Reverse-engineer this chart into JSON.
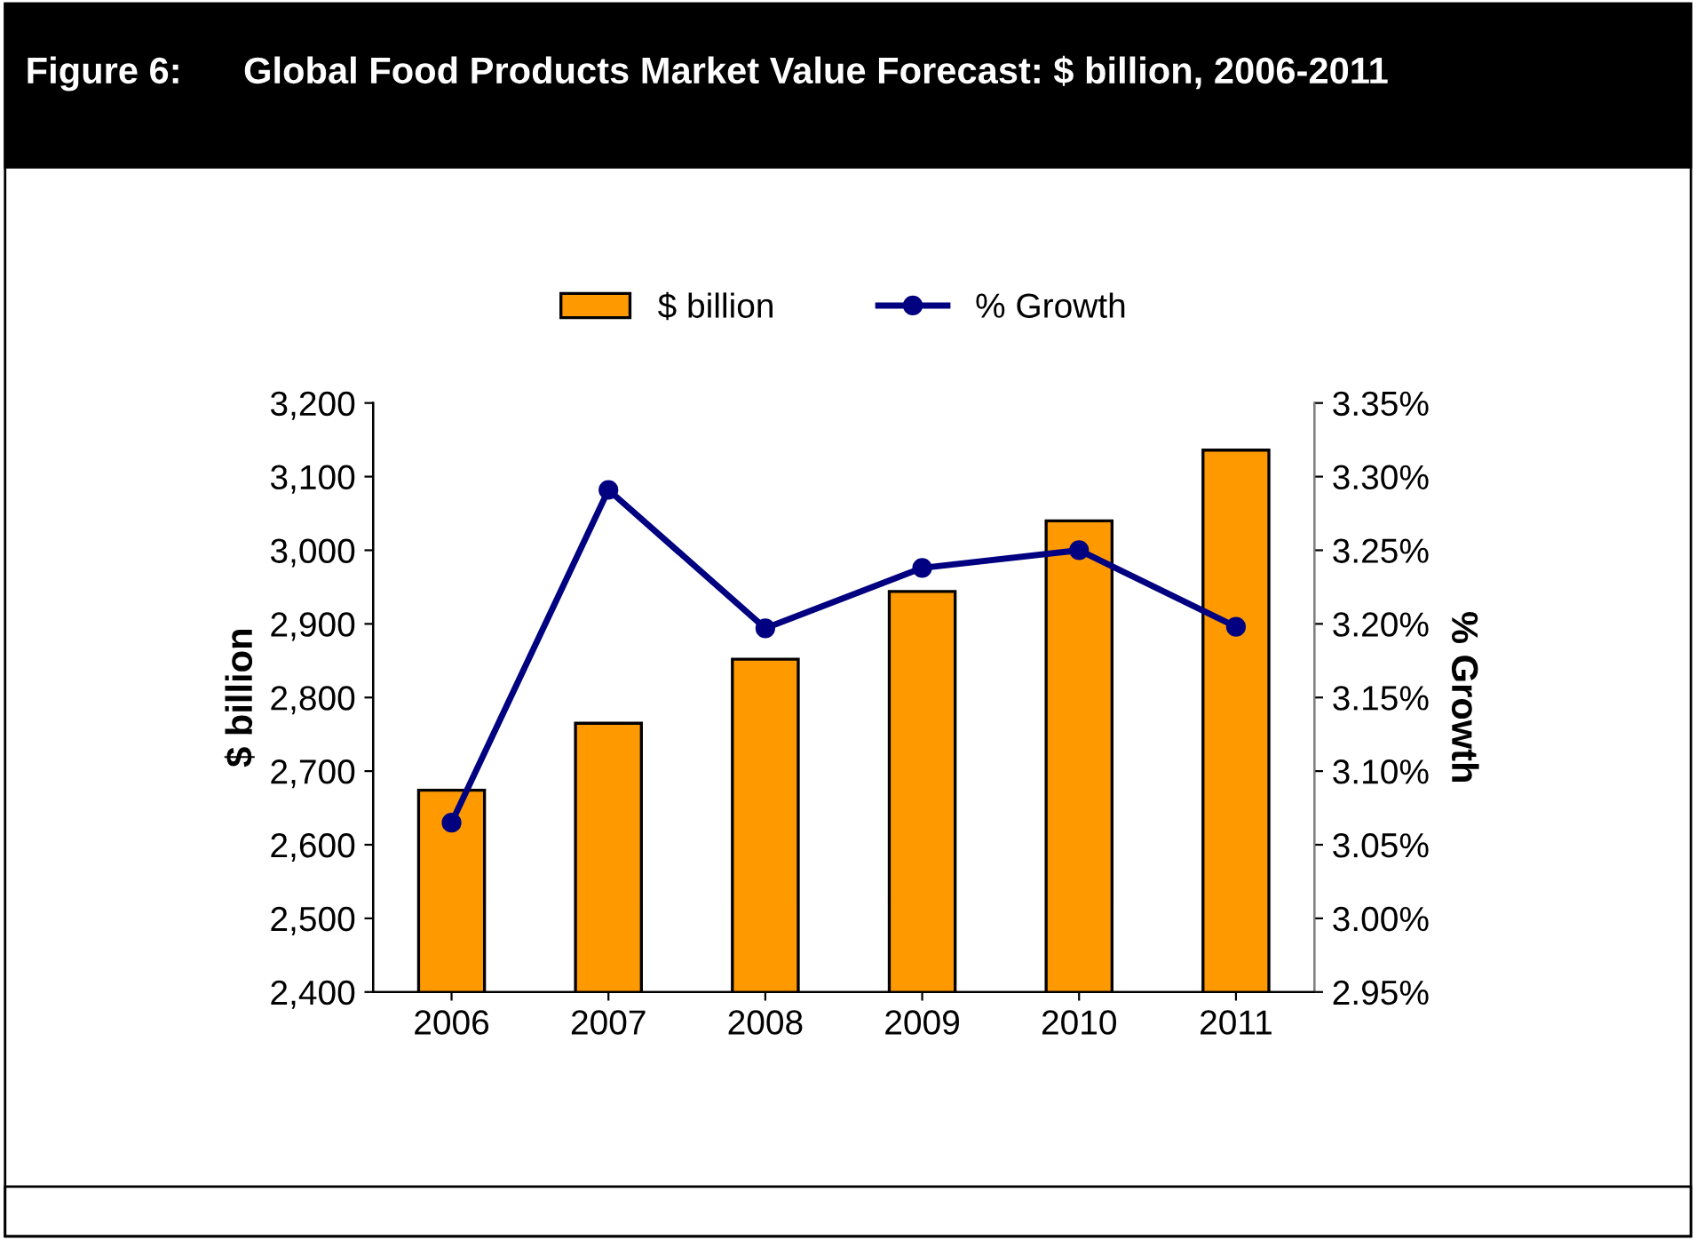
{
  "chart_data": {
    "type": "bar",
    "title": "Figure 6:      Global Food Products Market Value Forecast: $ billion, 2006-2011",
    "categories": [
      "2006",
      "2007",
      "2008",
      "2009",
      "2010",
      "2011"
    ],
    "series": [
      {
        "name": "$ billion",
        "color": "#ff9900",
        "values": [
          2674,
          2765,
          2852,
          2944,
          3040,
          3136
        ]
      },
      {
        "name": "% Growth",
        "type": "line",
        "axis": "y2",
        "color": "#000080",
        "marker": "circle",
        "values": [
          3.065,
          3.291,
          3.197,
          3.238,
          3.25,
          3.198
        ]
      }
    ],
    "ylabel": "$ billion",
    "y2label": "% Growth",
    "ylim": [
      2400,
      3200
    ],
    "yticks": [
      {
        "value": 2400,
        "label": "2,400"
      },
      {
        "value": 2500,
        "label": "2,500"
      },
      {
        "value": 2600,
        "label": "2,600"
      },
      {
        "value": 2700,
        "label": "2,700"
      },
      {
        "value": 2800,
        "label": "2,800"
      },
      {
        "value": 2900,
        "label": "2,900"
      },
      {
        "value": 3000,
        "label": "3,000"
      },
      {
        "value": 3100,
        "label": "3,100"
      },
      {
        "value": 3200,
        "label": "3,200"
      }
    ],
    "y2lim": [
      2.95,
      3.35
    ],
    "y2ticks": [
      {
        "value": 2.95,
        "label": "2.95%"
      },
      {
        "value": 3.0,
        "label": "3.00%"
      },
      {
        "value": 3.05,
        "label": "3.05%"
      },
      {
        "value": 3.1,
        "label": "3.10%"
      },
      {
        "value": 3.15,
        "label": "3.15%"
      },
      {
        "value": 3.2,
        "label": "3.20%"
      },
      {
        "value": 3.25,
        "label": "3.25%"
      },
      {
        "value": 3.3,
        "label": "3.30%"
      },
      {
        "value": 3.35,
        "label": "3.35%"
      }
    ],
    "legend": "top",
    "grid": false
  }
}
